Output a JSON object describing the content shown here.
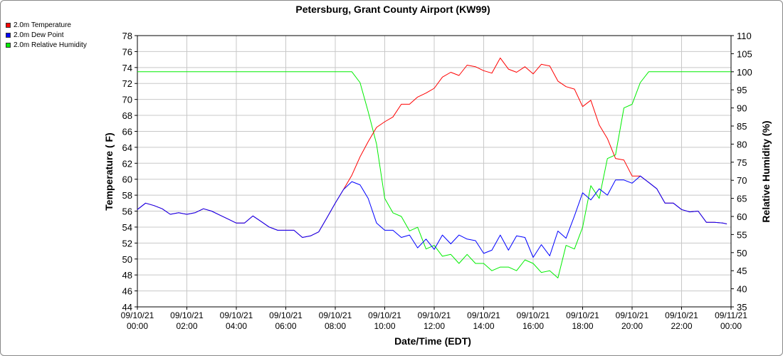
{
  "chart_data": {
    "type": "line",
    "title": "Petersburg, Grant County Airport (KW99)",
    "xlabel": "Date/Time (EDT)",
    "ylabel": "Temperature ( F)",
    "y2label": "Relative Humidity (%)",
    "ylim": [
      44,
      78
    ],
    "y2lim": [
      35,
      110
    ],
    "ytick_step": 2,
    "y2tick_step": 5,
    "x_range_hours": [
      0,
      24
    ],
    "x_ticks": [
      {
        "date": "09/10/21",
        "time": "00:00"
      },
      {
        "date": "09/10/21",
        "time": "02:00"
      },
      {
        "date": "09/10/21",
        "time": "04:00"
      },
      {
        "date": "09/10/21",
        "time": "06:00"
      },
      {
        "date": "09/10/21",
        "time": "08:00"
      },
      {
        "date": "09/10/21",
        "time": "10:00"
      },
      {
        "date": "09/10/21",
        "time": "12:00"
      },
      {
        "date": "09/10/21",
        "time": "14:00"
      },
      {
        "date": "09/10/21",
        "time": "16:00"
      },
      {
        "date": "09/10/21",
        "time": "18:00"
      },
      {
        "date": "09/10/21",
        "time": "20:00"
      },
      {
        "date": "09/10/21",
        "time": "22:00"
      },
      {
        "date": "09/11/21",
        "time": "00:00"
      }
    ],
    "grid": true,
    "legend_position": "top-left",
    "series": [
      {
        "name": "2.0m Temperature",
        "color": "#ff0000",
        "axis": "left",
        "x": [
          0,
          0.33,
          0.67,
          1,
          1.33,
          1.67,
          2,
          2.33,
          2.67,
          3,
          3.33,
          3.67,
          4,
          4.33,
          4.67,
          5,
          5.33,
          5.67,
          6,
          6.33,
          6.67,
          7,
          7.33,
          7.67,
          8,
          8.33,
          8.67,
          9,
          9.33,
          9.67,
          10,
          10.33,
          10.67,
          11,
          11.33,
          11.67,
          12,
          12.33,
          12.67,
          13,
          13.33,
          13.67,
          14,
          14.33,
          14.67,
          15,
          15.33,
          15.67,
          16,
          16.33,
          16.67,
          17,
          17.33,
          17.67,
          18,
          18.33,
          18.67,
          19,
          19.33,
          19.67,
          20,
          20.33,
          20.67,
          21,
          21.33,
          21.67,
          22,
          22.33,
          22.67,
          23,
          23.33,
          23.67,
          23.83
        ],
        "values": [
          56.2,
          57,
          56.7,
          56.3,
          55.6,
          55.8,
          55.6,
          55.8,
          56.3,
          56,
          55.5,
          55,
          54.5,
          54.5,
          55.4,
          54.7,
          54,
          53.6,
          53.6,
          53.6,
          52.7,
          52.9,
          53.4,
          55.2,
          57,
          58.7,
          60.5,
          62.8,
          64.7,
          66.5,
          67.2,
          67.8,
          69.4,
          69.4,
          70.3,
          70.8,
          71.4,
          72.8,
          73.4,
          73,
          74.3,
          74.1,
          73.6,
          73.3,
          75.2,
          73.8,
          73.4,
          74.1,
          73.2,
          74.4,
          74.2,
          72.3,
          71.6,
          71.3,
          69.1,
          69.9,
          66.8,
          65.1,
          62.6,
          62.4,
          60.4,
          60.4,
          59.6,
          58.8,
          57,
          57,
          56.2,
          55.9,
          56,
          54.6,
          54.6,
          54.5,
          54.4
        ]
      },
      {
        "name": "2.0m Dew Point",
        "color": "#0000ff",
        "axis": "left",
        "x": [
          0,
          0.33,
          0.67,
          1,
          1.33,
          1.67,
          2,
          2.33,
          2.67,
          3,
          3.33,
          3.67,
          4,
          4.33,
          4.67,
          5,
          5.33,
          5.67,
          6,
          6.33,
          6.67,
          7,
          7.33,
          7.67,
          8,
          8.33,
          8.67,
          9,
          9.33,
          9.67,
          10,
          10.33,
          10.67,
          11,
          11.33,
          11.67,
          12,
          12.33,
          12.67,
          13,
          13.33,
          13.67,
          14,
          14.33,
          14.67,
          15,
          15.33,
          15.67,
          16,
          16.33,
          16.67,
          17,
          17.33,
          17.67,
          18,
          18.33,
          18.67,
          19,
          19.33,
          19.67,
          20,
          20.33,
          20.67,
          21,
          21.33,
          21.67,
          22,
          22.33,
          22.67,
          23,
          23.33,
          23.67,
          23.83
        ],
        "values": [
          56.2,
          57,
          56.7,
          56.3,
          55.6,
          55.8,
          55.6,
          55.8,
          56.3,
          56,
          55.5,
          55,
          54.5,
          54.5,
          55.4,
          54.7,
          54,
          53.6,
          53.6,
          53.6,
          52.7,
          52.9,
          53.4,
          55.2,
          57,
          58.7,
          59.7,
          59.3,
          57.6,
          54.5,
          53.6,
          53.6,
          52.7,
          53,
          51.4,
          52.5,
          51.2,
          53,
          51.9,
          53,
          52.5,
          52.3,
          50.7,
          51.1,
          53,
          51.1,
          52.9,
          52.7,
          50.2,
          51.8,
          50.4,
          53.5,
          52.6,
          55.4,
          58.3,
          57.4,
          58.8,
          58,
          59.9,
          59.9,
          59.5,
          60.4,
          59.6,
          58.8,
          57,
          57,
          56.2,
          55.9,
          56,
          54.6,
          54.6,
          54.5,
          54.4
        ]
      },
      {
        "name": "2.0m Relative Humidity",
        "color": "#00ee00",
        "axis": "right",
        "x": [
          0,
          8.67,
          9,
          9.33,
          9.67,
          10,
          10.33,
          10.67,
          11,
          11.33,
          11.67,
          12,
          12.33,
          12.67,
          13,
          13.33,
          13.67,
          14,
          14.33,
          14.67,
          15,
          15.33,
          15.67,
          16,
          16.33,
          16.67,
          17,
          17.33,
          17.67,
          18,
          18.33,
          18.67,
          19,
          19.33,
          19.67,
          20,
          20.33,
          20.67,
          21,
          24
        ],
        "values": [
          100,
          100,
          97,
          89,
          80,
          65,
          61,
          60,
          56,
          57,
          51,
          52,
          49,
          49.5,
          47,
          49.5,
          47,
          47,
          45,
          46,
          46,
          45,
          48,
          47,
          44.5,
          45,
          43,
          52,
          51,
          57,
          68.5,
          65,
          76,
          77,
          90,
          91,
          97,
          100,
          100,
          100
        ]
      }
    ]
  }
}
